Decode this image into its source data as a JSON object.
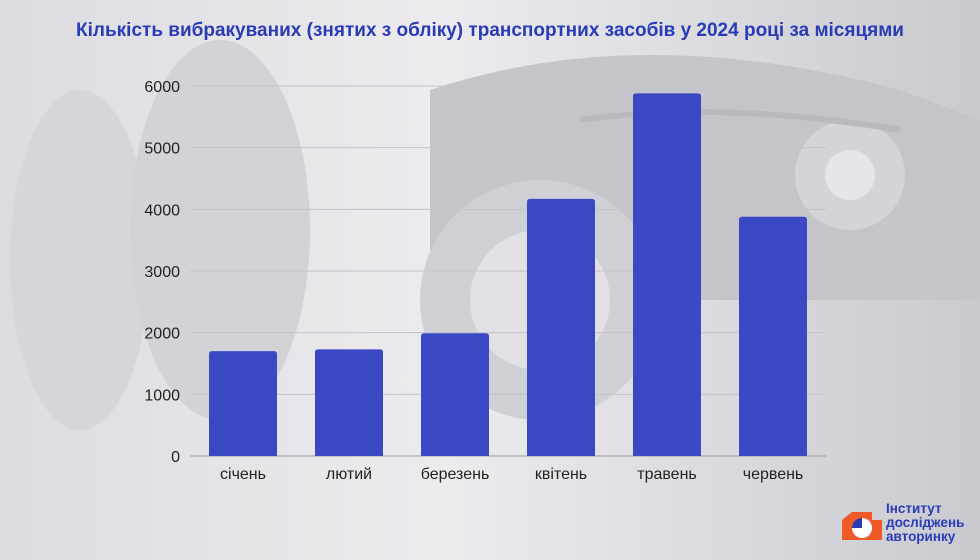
{
  "title": "Кількість вибракуваних (знятих з обліку) транспортних засобів у 2024 році за місяцями",
  "chart_data": {
    "type": "bar",
    "title": "Кількість вибракуваних (знятих з обліку) транспортних засобів у 2024 році за місяцями",
    "categories": [
      "січень",
      "лютий",
      "березень",
      "квітень",
      "травень",
      "червень"
    ],
    "values": [
      1700,
      1730,
      1990,
      4170,
      5880,
      3880
    ],
    "yticks": [
      0,
      1000,
      2000,
      3000,
      4000,
      5000,
      6000
    ],
    "ylim": [
      0,
      6000
    ],
    "grid": true,
    "bar_color": "#3b48c4"
  },
  "logo": {
    "line1": "Інститут",
    "line2": "досліджень",
    "line3": "авторинку",
    "accent_color": "#f05a28"
  }
}
